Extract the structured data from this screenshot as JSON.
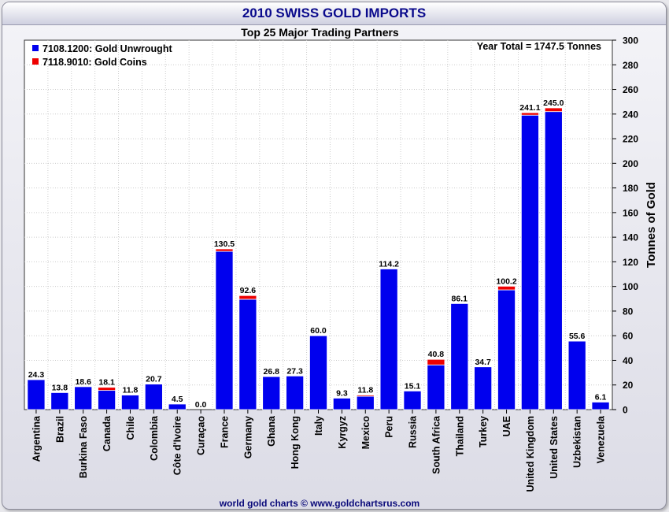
{
  "header": {
    "title": "2010 SWISS GOLD IMPORTS"
  },
  "footer": {
    "credit": "world gold charts © www.goldchartsrus.com"
  },
  "colors": {
    "unwrought": "#0000ee",
    "coins": "#ee0000",
    "bar_border": "#ffffff",
    "grid": "#cccccc"
  },
  "chart_data": {
    "type": "bar",
    "stacked": true,
    "title": "2010 SWISS GOLD IMPORTS",
    "subtitle": "Top 25 Major Trading Partners",
    "annotation": "Year Total = 1747.5 Tonnes",
    "ylabel": "Tonnes of Gold",
    "ylim": [
      0,
      300
    ],
    "ytick_step": 20,
    "y_axis_side": "right",
    "grid": true,
    "legend_position": "top-left",
    "categories": [
      "Argentina",
      "Brazil",
      "Burkina Faso",
      "Canada",
      "Chile",
      "Colombia",
      "Côte d'Ivoire",
      "Curaçao",
      "France",
      "Germany",
      "Ghana",
      "Hong Kong",
      "Italy",
      "Kyrgyz",
      "Mexico",
      "Peru",
      "Russia",
      "South Africa",
      "Thailand",
      "Turkey",
      "UAE",
      "United Kingdom",
      "United States",
      "Uzbekistan",
      "Venezuela"
    ],
    "totals": [
      "24.3",
      "13.8",
      "18.6",
      "18.1",
      "11.8",
      "20.7",
      "4.5",
      "0.0",
      "130.5",
      "92.6",
      "26.8",
      "27.3",
      "60.0",
      "9.3",
      "11.8",
      "114.2",
      "15.1",
      "40.8",
      "86.1",
      "34.7",
      "100.2",
      "241.1",
      "245.0",
      "55.6",
      "6.1"
    ],
    "series": [
      {
        "name": "7108.1200: Gold Unwrought",
        "color": "#0000ee",
        "values": [
          24.3,
          13.8,
          18.6,
          15.6,
          11.8,
          20.7,
          4.5,
          0.0,
          128.5,
          89.6,
          26.8,
          27.3,
          60.0,
          9.3,
          10.8,
          114.2,
          15.1,
          36.3,
          86.1,
          34.7,
          97.2,
          239.1,
          242.0,
          55.6,
          6.1
        ]
      },
      {
        "name": "7118.9010: Gold Coins",
        "color": "#ee0000",
        "values": [
          0,
          0,
          0,
          2.5,
          0,
          0,
          0,
          0,
          2.0,
          3.0,
          0,
          0,
          0,
          0,
          1.0,
          0,
          0,
          4.5,
          0,
          0,
          3.0,
          2.0,
          3.0,
          0,
          0
        ]
      }
    ]
  }
}
